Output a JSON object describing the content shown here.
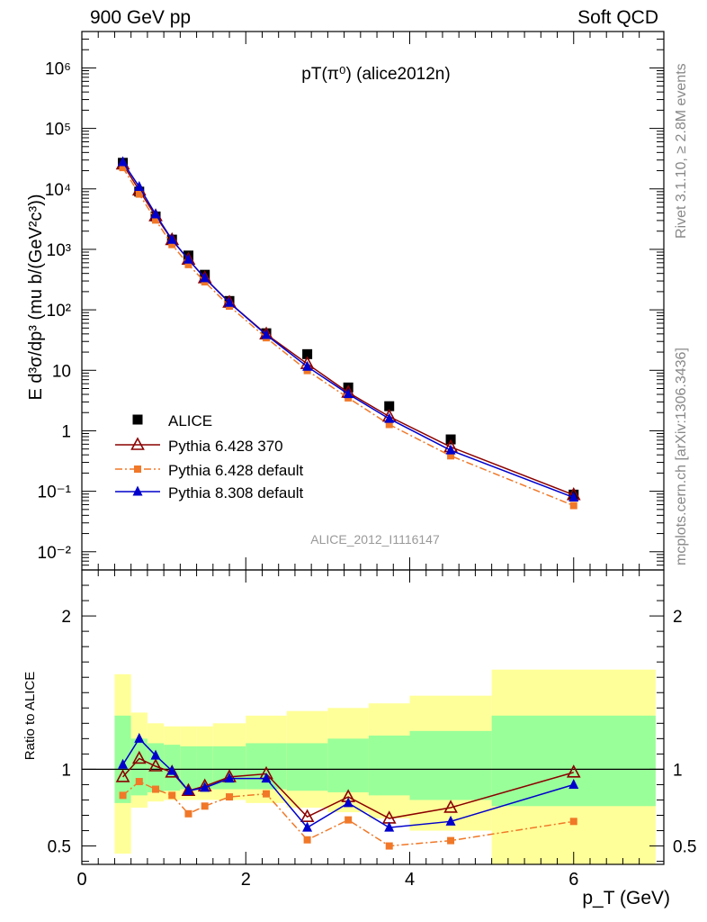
{
  "header": {
    "left": "900 GeV pp",
    "right": "Soft QCD"
  },
  "side_labels": {
    "rivet": "Rivet 3.1.10, ≥ 2.8M events",
    "mcplots": "mcplots.cern.ch [arXiv:1306.3436]"
  },
  "chart_data": [
    {
      "type": "scatter",
      "title": "pT(π⁰) (alice2012n)",
      "xlabel": "",
      "ylabel": "E d³σ/dp³ (mu b/(GeV²c³))",
      "yscale": "log",
      "xlim": [
        0,
        7.1
      ],
      "ylim": [
        0.005,
        4000000
      ],
      "y_ticks": [
        "10⁻²",
        "10⁻¹",
        "1",
        "10",
        "10²",
        "10³",
        "10⁴",
        "10⁵",
        "10⁶"
      ],
      "watermark": "ALICE_2012_I1116147",
      "legend_position": "lower-left",
      "x": [
        0.5,
        0.7,
        0.9,
        1.1,
        1.3,
        1.5,
        1.8,
        2.25,
        2.75,
        3.25,
        3.75,
        4.5,
        6.0
      ],
      "series": [
        {
          "name": "ALICE",
          "color": "#000000",
          "marker": "square",
          "values": [
            27000,
            9000,
            3500,
            1450,
            790,
            380,
            140,
            41,
            18.5,
            5.2,
            2.55,
            0.72,
            0.088
          ]
        },
        {
          "name": "Pythia 6.428 370",
          "color": "#8b0000",
          "marker": "open-triangle",
          "values": [
            25500,
            9500,
            3550,
            1430,
            680,
            335,
            132,
            39.5,
            12.8,
            4.3,
            1.72,
            0.54,
            0.087
          ]
        },
        {
          "name": "Pythia 6.428 default",
          "color": "#f07828",
          "marker": "small-square",
          "dash": true,
          "values": [
            22500,
            8200,
            3050,
            1200,
            560,
            290,
            115,
            34.5,
            9.9,
            3.5,
            1.27,
            0.385,
            0.058
          ]
        },
        {
          "name": "Pythia 8.308 default",
          "color": "#0000cc",
          "marker": "filled-triangle",
          "values": [
            27700,
            10800,
            3800,
            1440,
            680,
            335,
            131,
            38.5,
            11.5,
            4.05,
            1.58,
            0.475,
            0.079
          ]
        }
      ]
    },
    {
      "type": "scatter",
      "title": "",
      "xlabel": "p_T (GeV)",
      "ylabel": "Ratio to ALICE",
      "xlim": [
        0,
        7.1
      ],
      "ylim": [
        0.38,
        2.3
      ],
      "x_ticks": [
        "0",
        "2",
        "4",
        "6"
      ],
      "y_ticks": [
        "0.5",
        "1",
        "2"
      ],
      "uncertainty_bands": {
        "edges": [
          0.4,
          0.6,
          0.8,
          1.0,
          1.2,
          1.4,
          1.6,
          2.0,
          2.5,
          3.0,
          3.5,
          4.0,
          5.0,
          7.0
        ],
        "green": [
          [
            0.78,
            1.35
          ],
          [
            0.83,
            1.2
          ],
          [
            0.85,
            1.17
          ],
          [
            0.86,
            1.16
          ],
          [
            0.87,
            1.15
          ],
          [
            0.87,
            1.15
          ],
          [
            0.87,
            1.15
          ],
          [
            0.87,
            1.17
          ],
          [
            0.86,
            1.17
          ],
          [
            0.85,
            1.2
          ],
          [
            0.83,
            1.22
          ],
          [
            0.8,
            1.25
          ],
          [
            0.76,
            1.35
          ]
        ],
        "yellow": [
          [
            0.45,
            1.62
          ],
          [
            0.75,
            1.37
          ],
          [
            0.79,
            1.3
          ],
          [
            0.8,
            1.28
          ],
          [
            0.8,
            1.28
          ],
          [
            0.8,
            1.28
          ],
          [
            0.8,
            1.3
          ],
          [
            0.78,
            1.35
          ],
          [
            0.75,
            1.38
          ],
          [
            0.72,
            1.4
          ],
          [
            0.68,
            1.43
          ],
          [
            0.6,
            1.48
          ],
          [
            0.38,
            1.65
          ]
        ]
      },
      "x": [
        0.5,
        0.7,
        0.9,
        1.1,
        1.3,
        1.5,
        1.8,
        2.25,
        2.75,
        3.25,
        3.75,
        4.5,
        6.0
      ],
      "series": [
        {
          "name": "Pythia 6.428 370",
          "color": "#8b0000",
          "values": [
            0.95,
            1.07,
            1.02,
            0.98,
            0.86,
            0.89,
            0.95,
            0.97,
            0.69,
            0.82,
            0.68,
            0.75,
            0.98
          ]
        },
        {
          "name": "Pythia 6.428 default",
          "color": "#f07828",
          "values": [
            0.83,
            0.92,
            0.87,
            0.83,
            0.71,
            0.76,
            0.82,
            0.84,
            0.54,
            0.67,
            0.5,
            0.535,
            0.66
          ]
        },
        {
          "name": "Pythia 8.308 default",
          "color": "#0000cc",
          "values": [
            1.03,
            1.2,
            1.09,
            0.99,
            0.86,
            0.88,
            0.94,
            0.94,
            0.62,
            0.78,
            0.62,
            0.66,
            0.9
          ]
        }
      ]
    }
  ]
}
